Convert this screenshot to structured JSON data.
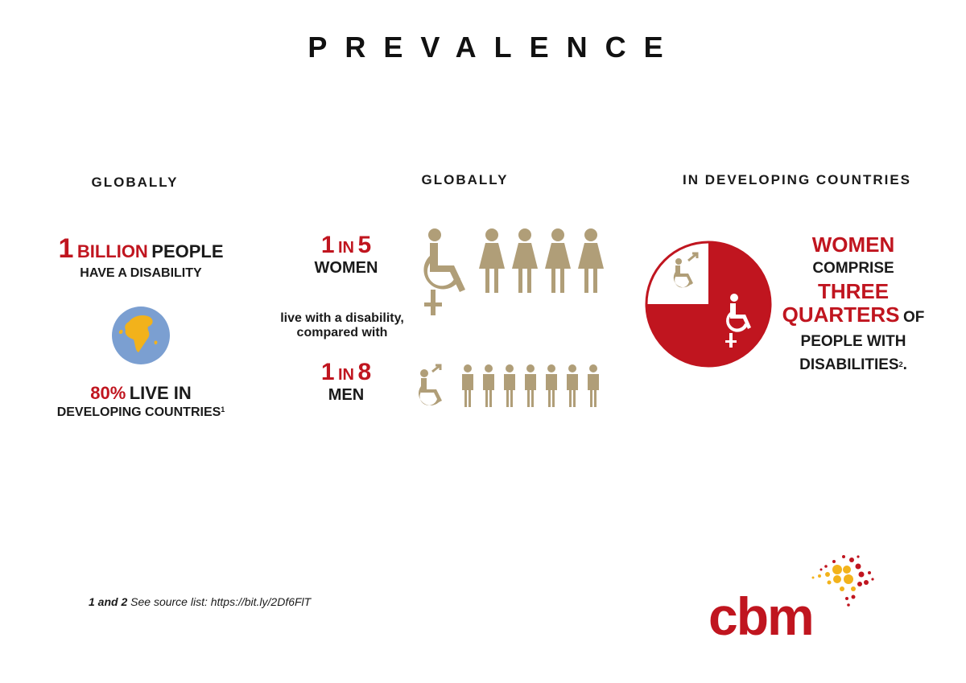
{
  "title": "PREVALENCE",
  "col1": {
    "heading": "GLOBALLY",
    "stat_number": "1",
    "stat_unit": "BILLION",
    "stat_rest": "PEOPLE",
    "stat_line2": "HAVE A DISABILITY",
    "pct": "80%",
    "pct_rest": "LIVE IN",
    "pct_line2": "DEVELOPING COUNTRIES",
    "pct_ref": "1"
  },
  "col2": {
    "heading": "GLOBALLY",
    "women_n1": "1",
    "women_in": "IN",
    "women_n2": "5",
    "women_label": "WOMEN",
    "middle_line1": "live with a disability,",
    "middle_line2": "compared with",
    "men_n1": "1",
    "men_in": "IN",
    "men_n2": "8",
    "men_label": "MEN"
  },
  "col3": {
    "heading": "IN DEVELOPING COUNTRIES",
    "line1": "WOMEN",
    "line2": "COMPRISE",
    "line3": "THREE",
    "line4a": "QUARTERS",
    "line4b": "OF",
    "line5": "PEOPLE WITH",
    "line6": "DISABILITIES",
    "line6_ref": "2",
    "line6_end": "."
  },
  "pie": {
    "women_fraction": 0.75
  },
  "footnote": {
    "refs": "1 and 2",
    "text": "See source list: https://bit.ly/2Df6FlT"
  },
  "logo": {
    "text": "cbm"
  },
  "colors": {
    "red": "#c0151f",
    "gold": "#b09e78",
    "globe_blue": "#7b9fd1",
    "globe_land": "#f2b21b"
  },
  "icons": [
    "globe-icon",
    "wheelchair-female-icon",
    "female-figure-icon",
    "wheelchair-male-icon",
    "male-figure-icon",
    "pie-chart"
  ]
}
